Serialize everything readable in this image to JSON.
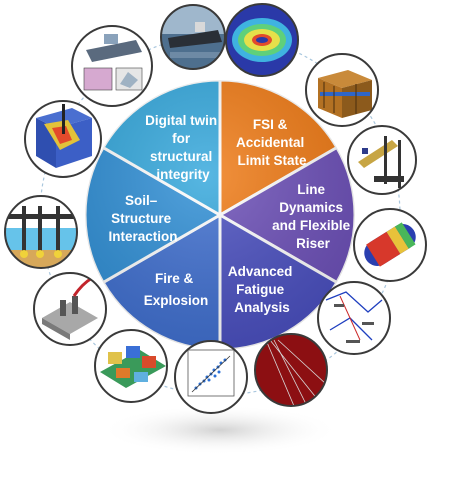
{
  "segments": [
    {
      "lines": [
        "FSI &",
        "Accidental",
        "Limit State"
      ],
      "color": "#f07a14"
    },
    {
      "lines": [
        "Line",
        "Dynamics",
        "and Flexible",
        "Riser"
      ],
      "color": "#6c4fb8"
    },
    {
      "lines": [
        "Advanced",
        "Fatigue",
        "Analysis"
      ],
      "color": "#4a4fc0"
    },
    {
      "lines": [
        "Fire &",
        "Explosion"
      ],
      "color": "#3f6fd0"
    },
    {
      "lines": [
        "Soil–",
        "Structure",
        "Interaction"
      ],
      "color": "#2f8fd6"
    },
    {
      "lines": [
        "Digital twin",
        "for",
        "structural",
        "integrity"
      ],
      "color": "#33a7dc"
    }
  ],
  "thumbnails": [
    {
      "icon": "ship-photo-icon"
    },
    {
      "icon": "fsi-contour-icon"
    },
    {
      "icon": "structure-block-icon"
    },
    {
      "icon": "tower-model-icon"
    },
    {
      "icon": "riser-pipe-icon"
    },
    {
      "icon": "fatigue-diagram-icon"
    },
    {
      "icon": "mooring-lines-icon"
    },
    {
      "icon": "scatter-plot-icon"
    },
    {
      "icon": "platform-fire-icon"
    },
    {
      "icon": "explosion-model-icon"
    },
    {
      "icon": "pile-soil-icon"
    },
    {
      "icon": "soil-penetration-icon"
    },
    {
      "icon": "ship-model-icon"
    }
  ]
}
